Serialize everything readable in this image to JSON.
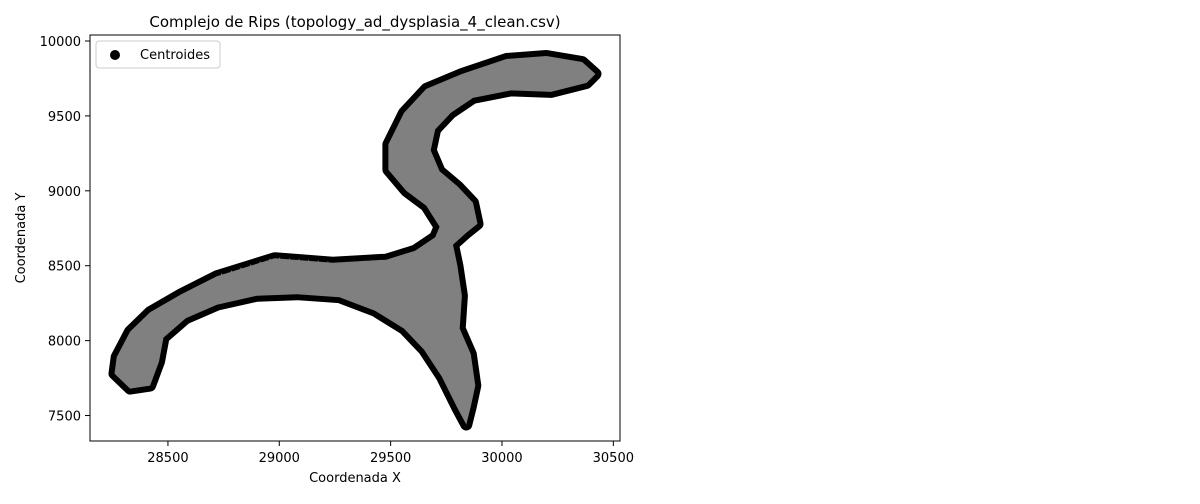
{
  "chart_data": {
    "type": "scatter",
    "title": "Complejo de Rips (topology_ad_dysplasia_4_clean.csv)",
    "xlabel": "Coordenada X",
    "ylabel": "Coordenada Y",
    "xlim": [
      28150,
      30530
    ],
    "ylim": [
      7330,
      10040
    ],
    "xticks": [
      28500,
      29000,
      29500,
      30000,
      30500
    ],
    "yticks": [
      7500,
      8000,
      8500,
      9000,
      9500,
      10000
    ],
    "grid": false,
    "legend": {
      "position": "top-left",
      "entries": [
        "Centroides"
      ]
    },
    "colors": {
      "points": "#000000",
      "edges": "#808080"
    },
    "series": [
      {
        "name": "Centroides",
        "outline": [
          [
            28270,
            7890
          ],
          [
            28330,
            8060
          ],
          [
            28420,
            8190
          ],
          [
            28560,
            8310
          ],
          [
            28720,
            8430
          ],
          [
            28980,
            8550
          ],
          [
            29240,
            8520
          ],
          [
            29480,
            8540
          ],
          [
            29610,
            8600
          ],
          [
            29700,
            8690
          ],
          [
            29720,
            8760
          ],
          [
            29660,
            8900
          ],
          [
            29570,
            9000
          ],
          [
            29490,
            9140
          ],
          [
            29490,
            9310
          ],
          [
            29560,
            9520
          ],
          [
            29660,
            9680
          ],
          [
            29820,
            9780
          ],
          [
            30020,
            9880
          ],
          [
            30200,
            9900
          ],
          [
            30360,
            9860
          ],
          [
            30420,
            9780
          ],
          [
            30380,
            9720
          ],
          [
            30220,
            9660
          ],
          [
            30040,
            9670
          ],
          [
            29870,
            9620
          ],
          [
            29770,
            9520
          ],
          [
            29700,
            9410
          ],
          [
            29680,
            9270
          ],
          [
            29720,
            9130
          ],
          [
            29800,
            9030
          ],
          [
            29870,
            8920
          ],
          [
            29890,
            8780
          ],
          [
            29840,
            8720
          ],
          [
            29780,
            8640
          ],
          [
            29800,
            8500
          ],
          [
            29820,
            8300
          ],
          [
            29810,
            8080
          ],
          [
            29860,
            7910
          ],
          [
            29880,
            7700
          ],
          [
            29860,
            7560
          ],
          [
            29840,
            7440
          ],
          [
            29800,
            7550
          ],
          [
            29730,
            7760
          ],
          [
            29650,
            7940
          ],
          [
            29560,
            8080
          ],
          [
            29430,
            8200
          ],
          [
            29270,
            8290
          ],
          [
            29080,
            8310
          ],
          [
            28900,
            8300
          ],
          [
            28720,
            8240
          ],
          [
            28580,
            8150
          ],
          [
            28480,
            8020
          ],
          [
            28460,
            7860
          ],
          [
            28420,
            7700
          ],
          [
            28330,
            7680
          ],
          [
            28260,
            7780
          ]
        ]
      }
    ]
  }
}
